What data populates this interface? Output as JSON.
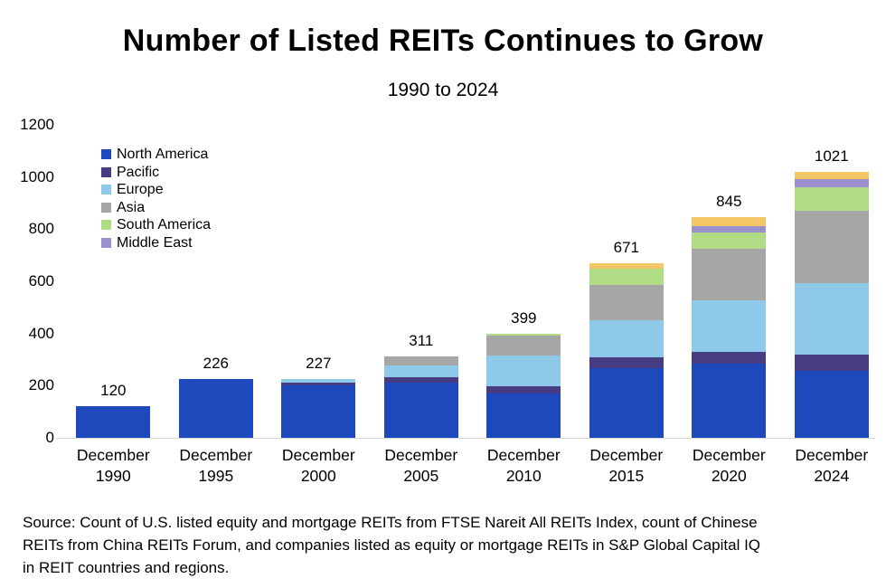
{
  "title": "Number of Listed REITs Continues to Grow",
  "subtitle": "1990 to 2024",
  "source_lines": [
    "Source: Count of U.S. listed equity and mortgage REITs from FTSE Nareit All REITs Index, count of Chinese",
    "REITs from China REITs Forum, and companies listed as equity or mortgage REITs in S&P Global Capital IQ",
    "in REIT countries and regions."
  ],
  "chart_data": {
    "type": "bar",
    "stacked": true,
    "title": "Number of Listed REITs Continues to Grow",
    "subtitle": "1990 to 2024",
    "xlabel": "",
    "ylabel": "",
    "ylim": [
      0,
      1200
    ],
    "y_ticks": [
      0,
      200,
      400,
      600,
      800,
      1000,
      1200
    ],
    "grid": false,
    "legend_position": "top-left-inside",
    "categories": [
      "December 1990",
      "December 1995",
      "December 2000",
      "December 2005",
      "December 2010",
      "December 2015",
      "December 2020",
      "December 2024"
    ],
    "totals": [
      120,
      226,
      227,
      311,
      399,
      671,
      845,
      1021
    ],
    "series": [
      {
        "name": "North America",
        "color": "#1E49BC",
        "in_legend": true,
        "values": [
          120,
          226,
          201,
          212,
          170,
          268,
          284,
          258
        ]
      },
      {
        "name": "Pacific",
        "color": "#473C82",
        "in_legend": true,
        "values": [
          0,
          0,
          11,
          21,
          27,
          40,
          46,
          61
        ]
      },
      {
        "name": "Europe",
        "color": "#8FC9E9",
        "in_legend": true,
        "values": [
          0,
          0,
          15,
          44,
          118,
          144,
          197,
          275
        ]
      },
      {
        "name": "Asia",
        "color": "#A6A6A6",
        "in_legend": true,
        "values": [
          0,
          0,
          0,
          34,
          76,
          133,
          198,
          276
        ]
      },
      {
        "name": "South America",
        "color": "#B0DC86",
        "in_legend": true,
        "values": [
          0,
          0,
          0,
          0,
          8,
          65,
          63,
          90
        ]
      },
      {
        "name": "Middle East",
        "color": "#9B90CD",
        "in_legend": true,
        "values": [
          0,
          0,
          0,
          0,
          0,
          0,
          23,
          31
        ]
      },
      {
        "name": "Other (unlabeled)",
        "color": "#F3C766",
        "in_legend": false,
        "values": [
          0,
          0,
          0,
          0,
          0,
          21,
          34,
          30
        ]
      }
    ],
    "colors": {
      "axis_line": "#D6D6D6",
      "text": "#000000",
      "background": "#FFFFFF"
    }
  }
}
